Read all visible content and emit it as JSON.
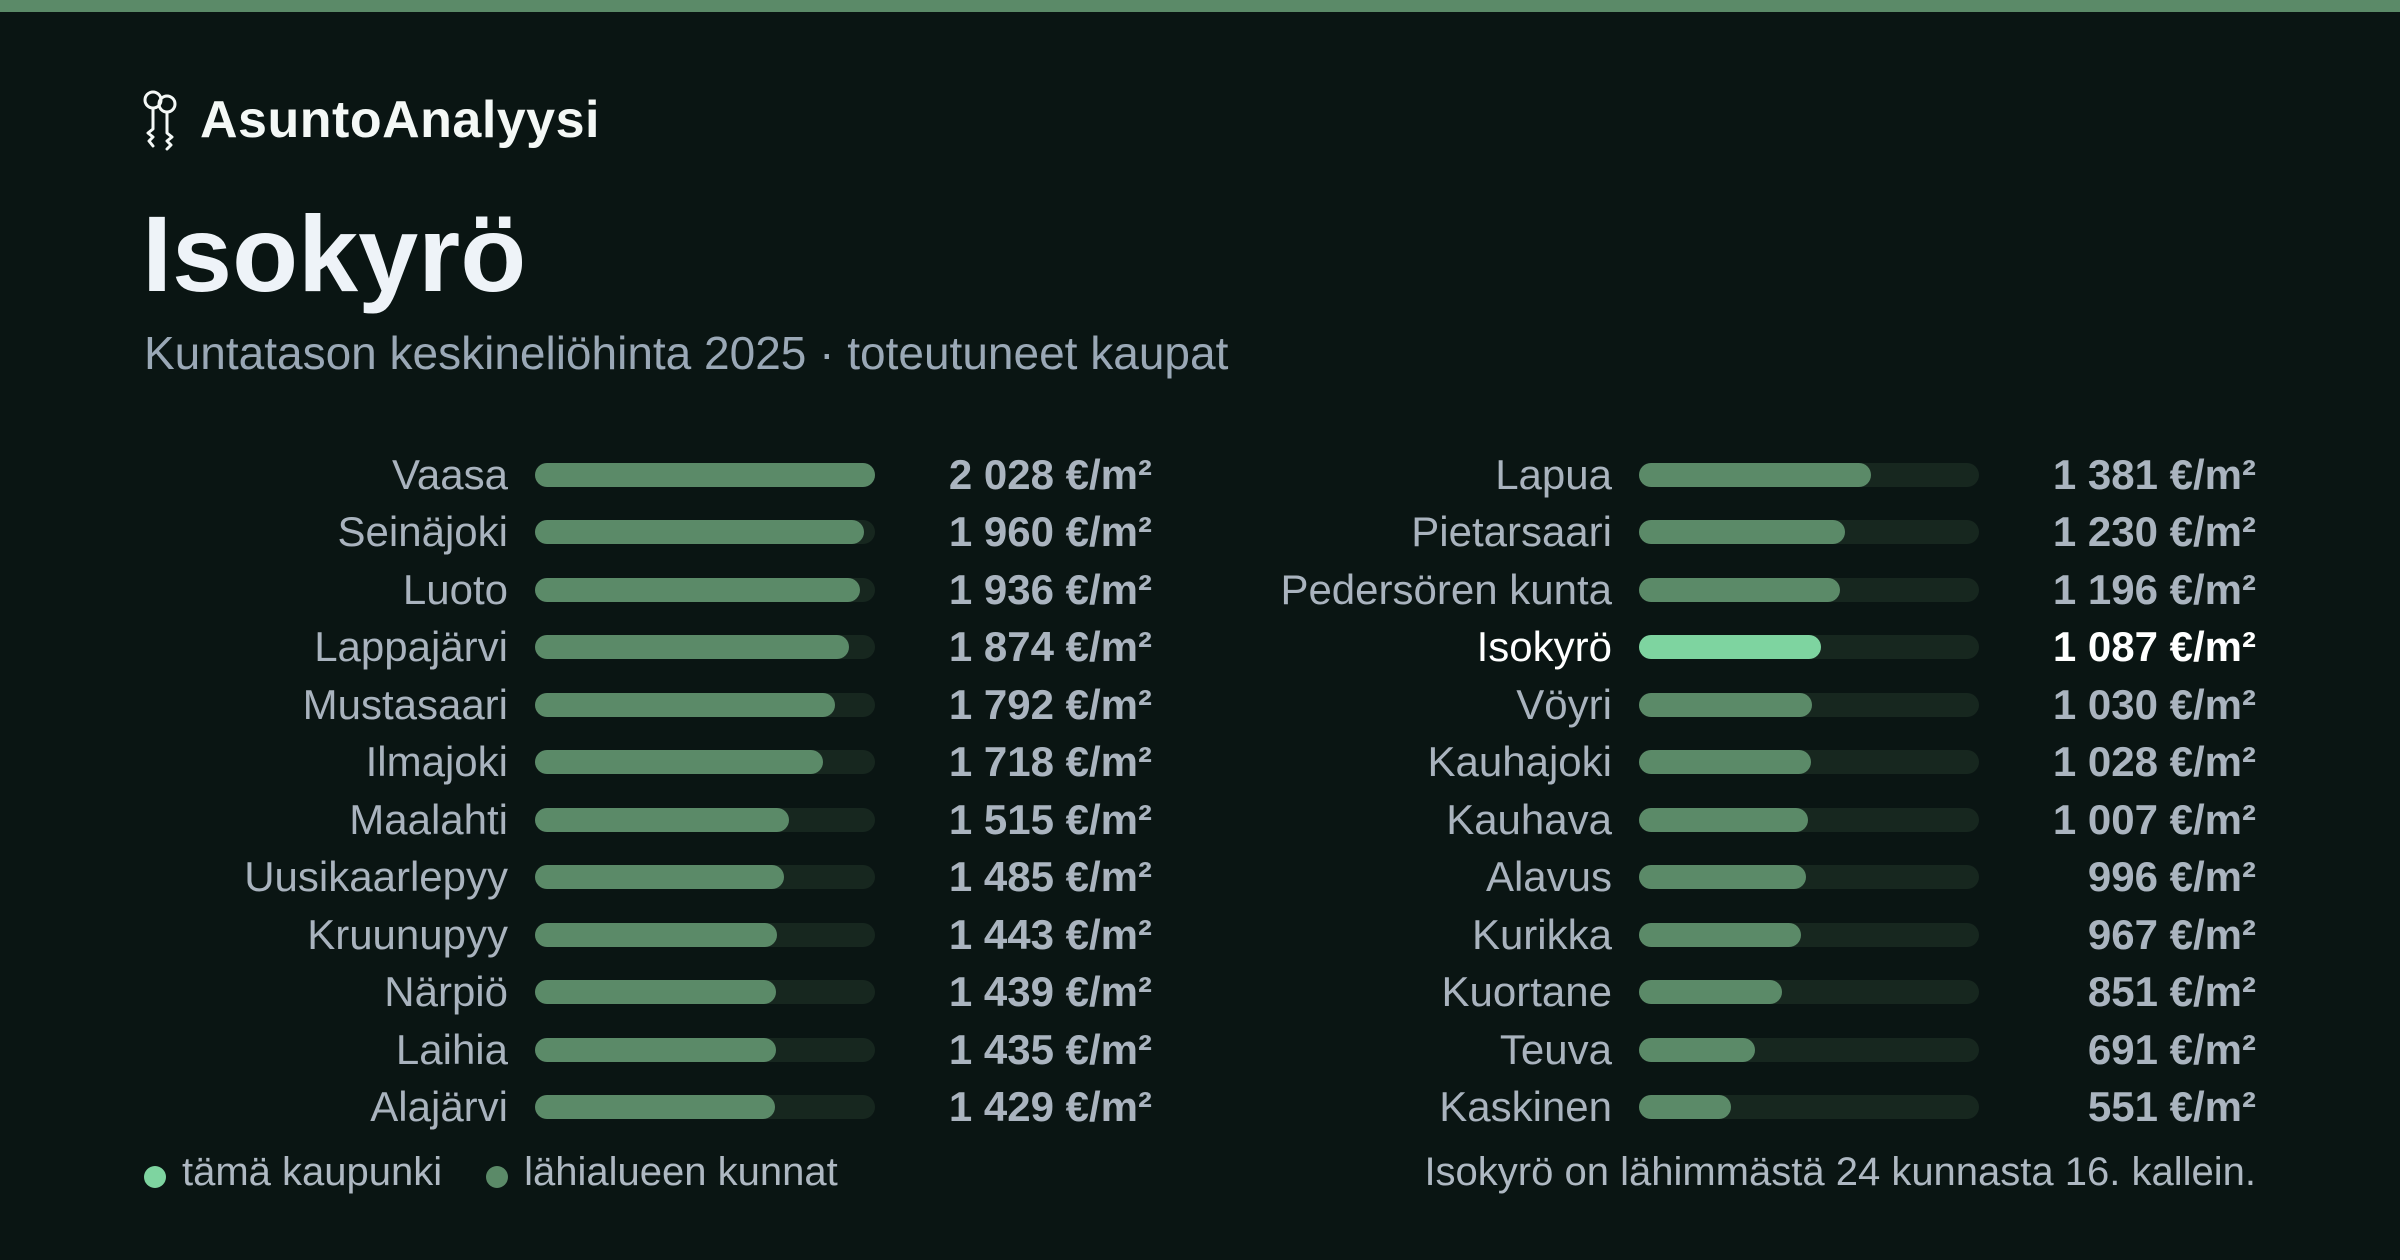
{
  "brand": {
    "name": "AsuntoAnalyysi",
    "icon": "keys-icon"
  },
  "title": "Isokyrö",
  "subtitle": "Kuntatason keskineliöhinta 2025 · toteutuneet kaupat",
  "legend": {
    "this_city": "tämä kaupunki",
    "nearby": "lähialueen kunnat"
  },
  "rank_note": "Isokyrö on lähimmästä 24 kunnasta 16. kallein.",
  "colors": {
    "background": "#0a1513",
    "bar": "#5b8a68",
    "bar_highlight": "#7ed4a0",
    "track": "#17271f",
    "top_accent": "#5b8a68"
  },
  "chart_data": {
    "type": "bar",
    "orientation": "horizontal",
    "unit": "€/m²",
    "xlim": [
      0,
      2028
    ],
    "highlight": "Isokyrö",
    "items": [
      {
        "name": "Vaasa",
        "value": 2028,
        "label": "2 028 €/m²"
      },
      {
        "name": "Seinäjoki",
        "value": 1960,
        "label": "1 960 €/m²"
      },
      {
        "name": "Luoto",
        "value": 1936,
        "label": "1 936 €/m²"
      },
      {
        "name": "Lappajärvi",
        "value": 1874,
        "label": "1 874 €/m²"
      },
      {
        "name": "Mustasaari",
        "value": 1792,
        "label": "1 792 €/m²"
      },
      {
        "name": "Ilmajoki",
        "value": 1718,
        "label": "1 718 €/m²"
      },
      {
        "name": "Maalahti",
        "value": 1515,
        "label": "1 515 €/m²"
      },
      {
        "name": "Uusikaarlepyy",
        "value": 1485,
        "label": "1 485 €/m²"
      },
      {
        "name": "Kruunupyy",
        "value": 1443,
        "label": "1 443 €/m²"
      },
      {
        "name": "Närpiö",
        "value": 1439,
        "label": "1 439 €/m²"
      },
      {
        "name": "Laihia",
        "value": 1435,
        "label": "1 435 €/m²"
      },
      {
        "name": "Alajärvi",
        "value": 1429,
        "label": "1 429 €/m²"
      },
      {
        "name": "Lapua",
        "value": 1381,
        "label": "1 381 €/m²"
      },
      {
        "name": "Pietarsaari",
        "value": 1230,
        "label": "1 230 €/m²"
      },
      {
        "name": "Pedersören kunta",
        "value": 1196,
        "label": "1 196 €/m²"
      },
      {
        "name": "Isokyrö",
        "value": 1087,
        "label": "1 087 €/m²"
      },
      {
        "name": "Vöyri",
        "value": 1030,
        "label": "1 030 €/m²"
      },
      {
        "name": "Kauhajoki",
        "value": 1028,
        "label": "1 028 €/m²"
      },
      {
        "name": "Kauhava",
        "value": 1007,
        "label": "1 007 €/m²"
      },
      {
        "name": "Alavus",
        "value": 996,
        "label": "996 €/m²"
      },
      {
        "name": "Kurikka",
        "value": 967,
        "label": "967 €/m²"
      },
      {
        "name": "Kuortane",
        "value": 851,
        "label": "851 €/m²"
      },
      {
        "name": "Teuva",
        "value": 691,
        "label": "691 €/m²"
      },
      {
        "name": "Kaskinen",
        "value": 551,
        "label": "551 €/m²"
      }
    ]
  }
}
